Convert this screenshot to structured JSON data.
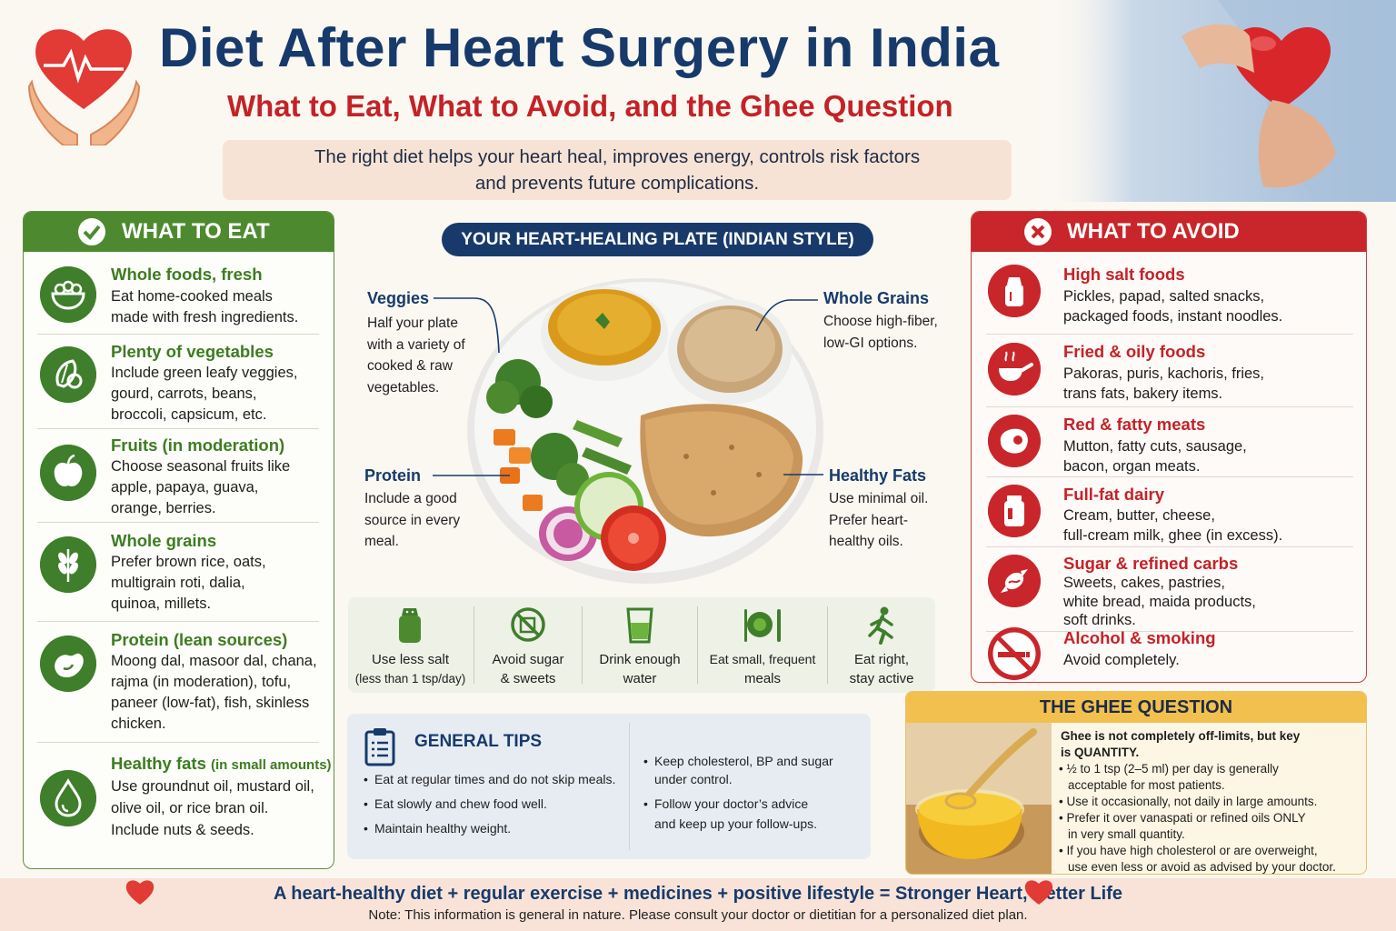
{
  "header": {
    "title": "Diet After Heart Surgery in India",
    "subtitle": "What to Eat, What to Avoid, and the Ghee Question",
    "intro_line1": "The right diet helps your heart heal, improves energy, controls risk factors",
    "intro_line2": "and prevents future complications."
  },
  "eat": {
    "title": "WHAT TO EAT",
    "items": [
      {
        "icon": "salad-bowl-icon",
        "title": "Whole foods, fresh",
        "lines": [
          "Eat home-cooked meals",
          "made with fresh ingredients."
        ]
      },
      {
        "icon": "vegetables-icon",
        "title": "Plenty of vegetables",
        "lines": [
          "Include green leafy veggies,",
          "gourd, carrots, beans,",
          "broccoli, capsicum, etc."
        ]
      },
      {
        "icon": "apple-icon",
        "title": "Fruits (in moderation)",
        "lines": [
          "Choose seasonal fruits like",
          "apple, papaya, guava,",
          "orange, berries."
        ]
      },
      {
        "icon": "wheat-icon",
        "title": "Whole grains",
        "lines": [
          "Prefer brown rice, oats,",
          "multigrain roti, dalia,",
          "quinoa, millets."
        ]
      },
      {
        "icon": "bean-icon",
        "title": "Protein (lean sources)",
        "lines": [
          "Moong dal, masoor dal, chana,",
          "rajma (in moderation), tofu,",
          "paneer (low-fat), fish, skinless",
          "chicken."
        ]
      },
      {
        "icon": "oil-drop-icon",
        "title": "Healthy fats",
        "title_suffix": "(in small amounts)",
        "lines": [
          "Use groundnut oil, mustard oil,",
          "olive oil, or rice bran oil.",
          "Include nuts & seeds."
        ]
      }
    ]
  },
  "plate": {
    "title": "YOUR HEART-HEALING PLATE (INDIAN STYLE)",
    "veggies": {
      "label": "Veggies",
      "lines": [
        "Half your plate",
        "with a variety of",
        "cooked & raw",
        "vegetables."
      ]
    },
    "grains": {
      "label": "Whole Grains",
      "lines": [
        "Choose high-fiber,",
        "low-GI options."
      ]
    },
    "protein": {
      "label": "Protein",
      "lines": [
        "Include a good",
        "source in every",
        "meal."
      ]
    },
    "fats": {
      "label": "Healthy Fats",
      "lines": [
        "Use minimal oil.",
        "Prefer heart-",
        "healthy oils."
      ]
    }
  },
  "habits": [
    {
      "icon": "salt-shaker-icon",
      "lines": [
        "Use less salt",
        "(less than 1 tsp/day)"
      ]
    },
    {
      "icon": "no-sugar-icon",
      "lines": [
        "Avoid sugar",
        "& sweets"
      ]
    },
    {
      "icon": "water-glass-icon",
      "lines": [
        "Drink enough",
        "water"
      ]
    },
    {
      "icon": "plate-cutlery-icon",
      "lines": [
        "Eat small, frequent",
        "meals"
      ]
    },
    {
      "icon": "running-person-icon",
      "lines": [
        "Eat right,",
        "stay active"
      ]
    }
  ],
  "tips": {
    "title": "GENERAL TIPS",
    "left": [
      "Eat at regular times and do not skip meals.",
      "Eat slowly and chew food well.",
      "Maintain healthy weight."
    ],
    "right": [
      [
        "Keep cholesterol, BP and sugar",
        "under control."
      ],
      [
        "Follow your doctor’s advice",
        "and keep up your follow-ups."
      ]
    ]
  },
  "avoid": {
    "title": "WHAT TO AVOID",
    "items": [
      {
        "icon": "salt-icon",
        "title": "High salt foods",
        "lines": [
          "Pickles, papad, salted snacks,",
          "packaged foods, instant noodles."
        ]
      },
      {
        "icon": "frying-pan-icon",
        "title": "Fried & oily foods",
        "lines": [
          "Pakoras, puris, kachoris, fries,",
          "trans fats, bakery items."
        ]
      },
      {
        "icon": "meat-icon",
        "title": "Red & fatty meats",
        "lines": [
          "Mutton, fatty cuts, sausage,",
          "bacon, organ meats."
        ]
      },
      {
        "icon": "jar-icon",
        "title": "Full-fat dairy",
        "lines": [
          "Cream, butter, cheese,",
          "full-cream milk, ghee (in excess)."
        ]
      },
      {
        "icon": "candy-icon",
        "title": "Sugar & refined carbs",
        "lines": [
          "Sweets, cakes, pastries,",
          "white bread, maida products,",
          "soft drinks."
        ]
      },
      {
        "icon": "no-smoking-icon",
        "title": "Alcohol & smoking",
        "lines": [
          "Avoid completely."
        ]
      }
    ]
  },
  "ghee": {
    "title": "THE GHEE QUESTION",
    "intro": [
      "Ghee is not completely off-limits, but key",
      "is QUANTITY."
    ],
    "bullets": [
      [
        "½ to 1 tsp (2–5 ml) per day is generally",
        "acceptable for most patients."
      ],
      [
        "Use it occasionally, not daily in large amounts."
      ],
      [
        "Prefer it over vanaspati or refined oils ONLY",
        "in very small quantity."
      ],
      [
        "If you have high cholesterol or are overweight,",
        "use even less or avoid as advised by your doctor."
      ]
    ]
  },
  "footer": {
    "main": "A heart-healthy diet + regular exercise + medicines + positive lifestyle = Stronger Heart, Better Life",
    "note": "Note: This information is general in nature. Please consult your doctor or dietitian for a personalized diet plan."
  },
  "colors": {
    "navy": "#173a6b",
    "red": "#c42227",
    "green": "#4d8a2f",
    "gold": "#f2c04f"
  }
}
